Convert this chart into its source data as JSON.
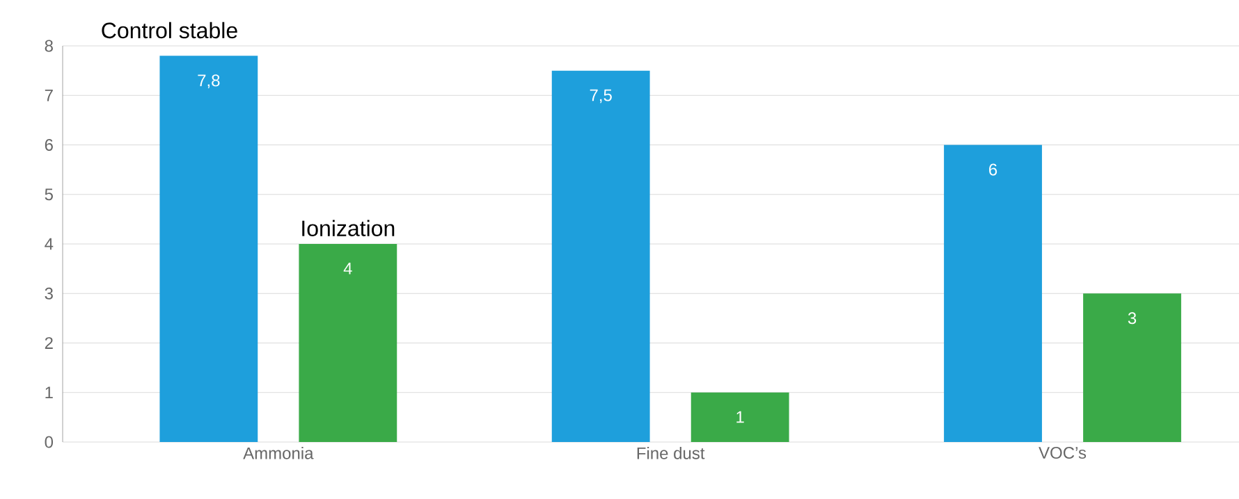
{
  "chart_data": {
    "type": "bar",
    "categories": [
      "Ammonia",
      "Fine dust",
      "VOC’s"
    ],
    "series": [
      {
        "name": "Control stable",
        "color": "#1e9fdc",
        "values": [
          7.8,
          7.5,
          6
        ],
        "value_labels": [
          "7,8",
          "7,5",
          "6"
        ]
      },
      {
        "name": "Ionization",
        "color": "#3aaa48",
        "values": [
          4,
          1,
          3
        ],
        "value_labels": [
          "4",
          "1",
          "3"
        ]
      }
    ],
    "ylim": [
      0,
      8
    ],
    "yticks": [
      0,
      1,
      2,
      3,
      4,
      5,
      6,
      7,
      8
    ],
    "grid": "y",
    "legend": false
  }
}
